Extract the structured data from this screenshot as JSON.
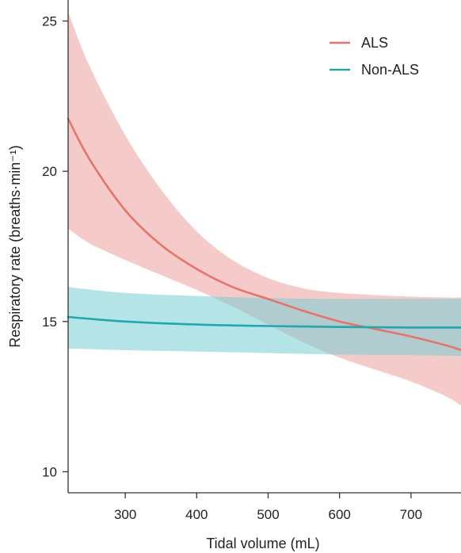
{
  "chart_data": {
    "type": "line",
    "xlabel": "Tidal volume (mL)",
    "ylabel": "Respiratory rate (breaths·min⁻¹)",
    "xlim": [
      220,
      770
    ],
    "ylim": [
      9.3,
      25.7
    ],
    "xticks": [
      "300",
      "400",
      "500",
      "600",
      "700"
    ],
    "yticks": [
      "10",
      "15",
      "20",
      "25"
    ],
    "grid": false,
    "legend_position": "top-right",
    "series": [
      {
        "name": "ALS",
        "color": "#E8736A",
        "band_color": "#EDA09C",
        "x": [
          220,
          250,
          300,
          350,
          400,
          450,
          500,
          550,
          600,
          650,
          700,
          750,
          770
        ],
        "y": [
          21.75,
          20.4,
          18.7,
          17.55,
          16.75,
          16.15,
          15.75,
          15.35,
          15.0,
          14.75,
          14.5,
          14.2,
          14.05
        ],
        "lower": [
          18.1,
          17.6,
          17.05,
          16.55,
          16.05,
          15.5,
          14.9,
          14.3,
          13.8,
          13.4,
          13.0,
          12.5,
          12.2
        ],
        "upper": [
          25.3,
          23.5,
          21.2,
          19.4,
          18.0,
          17.05,
          16.45,
          16.1,
          15.95,
          15.88,
          15.83,
          15.8,
          15.8
        ]
      },
      {
        "name": "Non-ALS",
        "color": "#1FA8AE",
        "band_color": "#77CED1",
        "x": [
          220,
          300,
          400,
          500,
          600,
          700,
          770
        ],
        "y": [
          15.15,
          15.0,
          14.9,
          14.85,
          14.82,
          14.8,
          14.8
        ],
        "lower": [
          14.1,
          14.05,
          14.0,
          13.95,
          13.9,
          13.88,
          13.85
        ],
        "upper": [
          16.15,
          15.95,
          15.85,
          15.78,
          15.75,
          15.75,
          15.75
        ]
      }
    ]
  }
}
